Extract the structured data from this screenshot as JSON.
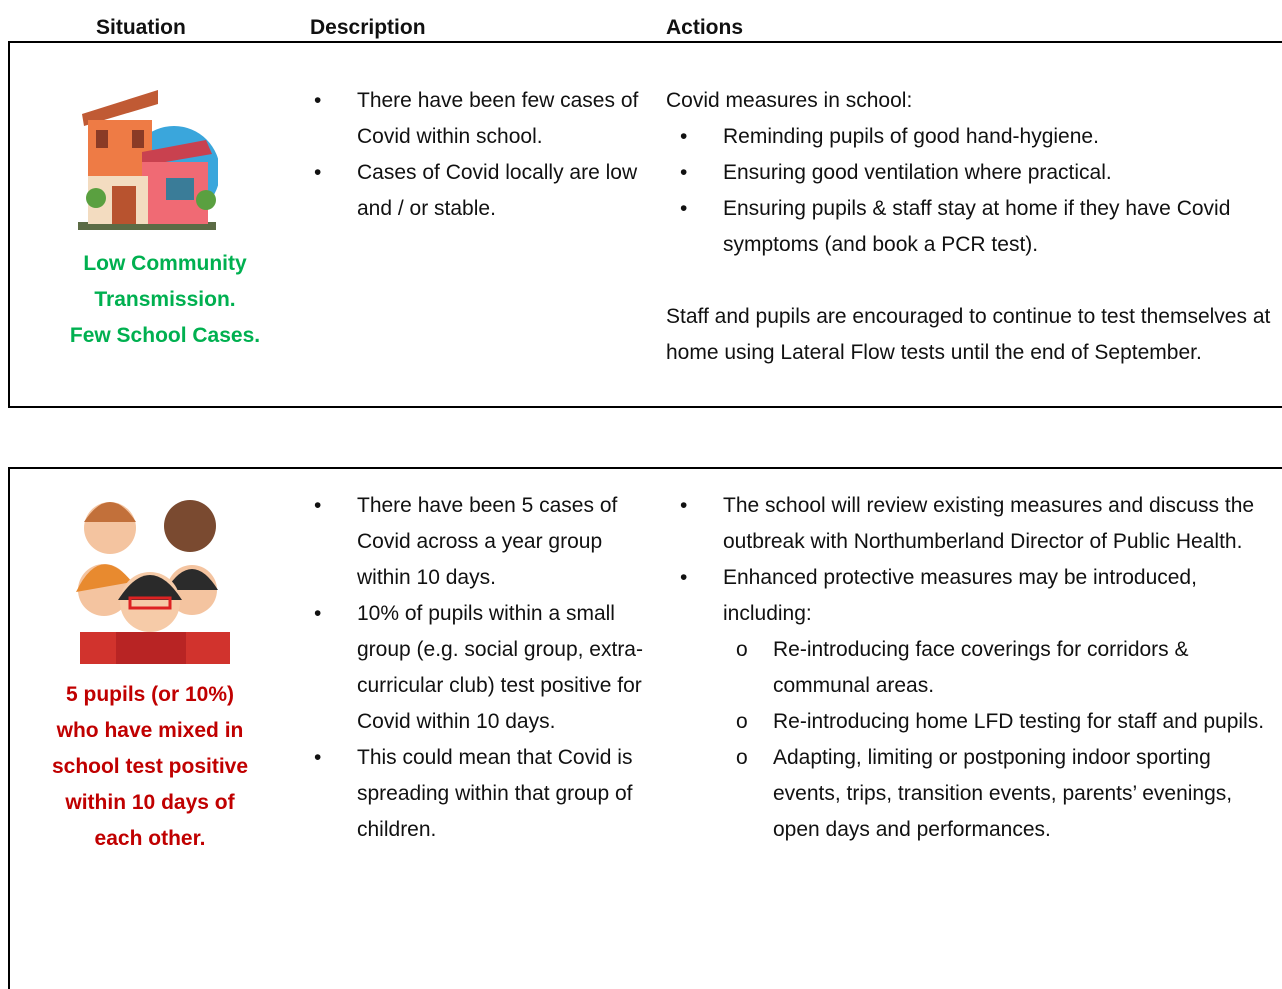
{
  "header": {
    "situation": "Situation",
    "description": "Description",
    "actions": "Actions"
  },
  "rows": [
    {
      "situation": [
        "Low Community",
        "Transmission.",
        "Few School Cases."
      ],
      "description": [
        "There have been few cases of Covid within school.",
        "Cases of Covid locally are low and / or stable."
      ],
      "actions": {
        "intro": "Covid measures in school:",
        "items": [
          "Reminding pupils of good hand-hygiene.",
          "Ensuring good ventilation where practical.",
          "Ensuring pupils & staff stay at home if they have Covid symptoms (and book a PCR test)."
        ],
        "note": "Staff and pupils are encouraged to continue to test themselves at home using Lateral Flow tests until the end of September."
      }
    },
    {
      "situation": [
        "5 pupils (or 10%)",
        "who have mixed in",
        "school test positive",
        "within 10 days of",
        "each other."
      ],
      "description": [
        "There have been 5 cases of Covid across a year group within 10 days.",
        "10% of pupils within a small group (e.g. social group, extra-curricular club) test positive for Covid within 10 days.",
        "This could mean that Covid is spreading within that group of children."
      ],
      "actions": {
        "items": [
          "The school will review existing measures and discuss the outbreak with Northumberland Director of Public Health.",
          "Enhanced protective measures may be introduced, including:"
        ],
        "subitems": [
          "Re-introducing face coverings for corridors & communal areas.",
          "Re-introducing home LFD testing for staff and pupils.",
          "Adapting, limiting or postponing indoor sporting events, trips, transition events, parents’ evenings, open days and performances."
        ]
      }
    }
  ]
}
